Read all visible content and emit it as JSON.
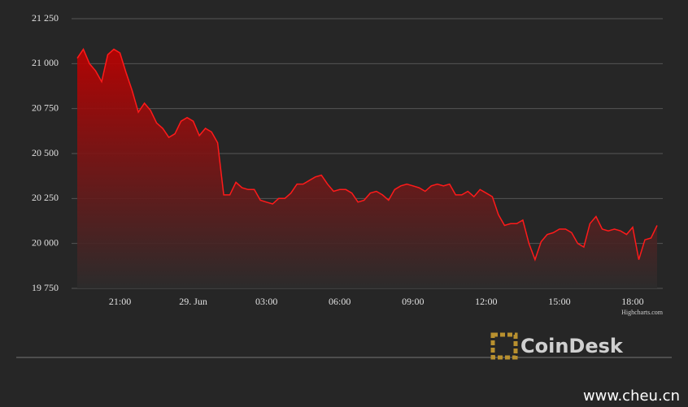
{
  "chart_data": {
    "type": "area",
    "categories": [
      null,
      null,
      null,
      null,
      null,
      null,
      null,
      "21:00",
      null,
      null,
      null,
      null,
      null,
      null,
      null,
      null,
      null,
      null,
      null,
      "29. Jun",
      null,
      null,
      null,
      null,
      null,
      null,
      null,
      null,
      null,
      null,
      null,
      "03:00",
      null,
      null,
      null,
      null,
      null,
      null,
      null,
      null,
      null,
      null,
      null,
      "06:00",
      null,
      null,
      null,
      null,
      null,
      null,
      null,
      null,
      null,
      null,
      null,
      "09:00",
      null,
      null,
      null,
      null,
      null,
      null,
      null,
      null,
      null,
      null,
      null,
      "12:00",
      null,
      null,
      null,
      null,
      null,
      null,
      null,
      null,
      null,
      null,
      null,
      "15:00",
      null,
      null,
      null,
      null,
      null,
      null,
      null,
      null,
      null,
      null,
      null,
      "18:00",
      null,
      null,
      null,
      null
    ],
    "values": [
      21030,
      21080,
      21000,
      20960,
      20900,
      21050,
      21080,
      21060,
      20950,
      20850,
      20730,
      20780,
      20740,
      20670,
      20640,
      20590,
      20610,
      20680,
      20700,
      20680,
      20600,
      20640,
      20620,
      20560,
      20270,
      20270,
      20340,
      20310,
      20300,
      20300,
      20240,
      20230,
      20220,
      20250,
      20250,
      20280,
      20330,
      20330,
      20350,
      20370,
      20380,
      20330,
      20290,
      20300,
      20300,
      20280,
      20230,
      20240,
      20280,
      20290,
      20270,
      20240,
      20300,
      20320,
      20330,
      20320,
      20310,
      20290,
      20320,
      20330,
      20320,
      20330,
      20270,
      20270,
      20290,
      20260,
      20300,
      20280,
      20260,
      20160,
      20100,
      20110,
      20110,
      20130,
      20000,
      19910,
      20010,
      20050,
      20060,
      20080,
      20080,
      20060,
      20000,
      19980,
      20110,
      20150,
      20080,
      20070,
      20080,
      20070,
      20050,
      20090,
      19910,
      20020,
      20030,
      20100
    ],
    "color": "#ff1a1a",
    "ylim": [
      19750,
      21250
    ],
    "yticks": [
      {
        "value": 19750,
        "label": "19 750"
      },
      {
        "value": 20000,
        "label": "20 000"
      },
      {
        "value": 20250,
        "label": "20 250"
      },
      {
        "value": 20500,
        "label": "20 500"
      },
      {
        "value": 20750,
        "label": "20 750"
      },
      {
        "value": 21000,
        "label": "21 000"
      },
      {
        "value": 21250,
        "label": "21 250"
      }
    ],
    "grid": true,
    "credits": "Highcharts.com"
  },
  "logo": "CoinDesk",
  "watermark": "www.cheu.cn"
}
